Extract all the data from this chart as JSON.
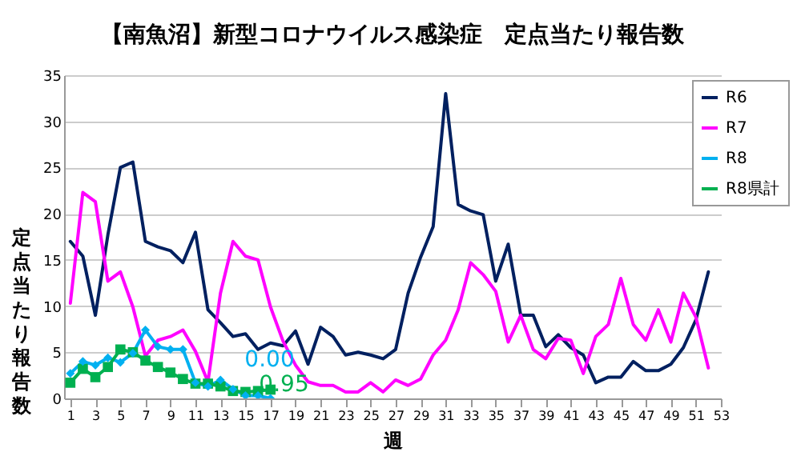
{
  "chart_data": {
    "type": "line",
    "title": "【南魚沼】新型コロナウイルス感染症　定点当たり報告数",
    "xlabel": "週",
    "ylabel": "定点当たり報告数",
    "x": [
      1,
      2,
      3,
      4,
      5,
      6,
      7,
      8,
      9,
      10,
      11,
      12,
      13,
      14,
      15,
      16,
      17,
      18,
      19,
      20,
      21,
      22,
      23,
      24,
      25,
      26,
      27,
      28,
      29,
      30,
      31,
      32,
      33,
      34,
      35,
      36,
      37,
      38,
      39,
      40,
      41,
      42,
      43,
      44,
      45,
      46,
      47,
      48,
      49,
      50,
      51,
      52
    ],
    "series": [
      {
        "name": "R6",
        "color": "#002060",
        "marker": "none",
        "values": [
          17.0,
          15.4,
          9.0,
          17.7,
          25.0,
          25.6,
          17.0,
          16.4,
          16.0,
          14.7,
          18.0,
          9.6,
          8.2,
          6.7,
          7.0,
          5.3,
          6.0,
          5.7,
          7.3,
          3.7,
          7.7,
          6.7,
          4.7,
          5.0,
          4.7,
          4.3,
          5.3,
          11.4,
          15.3,
          18.6,
          33.0,
          21.0,
          20.3,
          19.9,
          12.7,
          16.7,
          9.0,
          9.0,
          5.6,
          6.9,
          5.5,
          4.7,
          1.7,
          2.3,
          2.3,
          4.0,
          3.0,
          3.0,
          3.7,
          5.5,
          8.5,
          13.7
        ]
      },
      {
        "name": "R7",
        "color": "#ff00ff",
        "marker": "none",
        "values": [
          10.3,
          22.3,
          21.3,
          12.7,
          13.7,
          9.9,
          4.6,
          6.3,
          6.7,
          7.4,
          5.1,
          1.8,
          11.4,
          17.0,
          15.4,
          15.0,
          9.9,
          6.2,
          3.6,
          1.8,
          1.4,
          1.4,
          0.7,
          0.7,
          1.7,
          0.7,
          2.0,
          1.4,
          2.1,
          4.7,
          6.3,
          9.6,
          14.7,
          13.4,
          11.6,
          6.1,
          9.0,
          5.3,
          4.3,
          6.5,
          6.3,
          2.7,
          6.7,
          8.0,
          13.0,
          8.0,
          6.3,
          9.6,
          6.1,
          11.4,
          8.8,
          3.3
        ]
      },
      {
        "name": "R8",
        "color": "#00b0f0",
        "marker": "diamond",
        "x": [
          1,
          2,
          3,
          4,
          5,
          6,
          7,
          8,
          9,
          10,
          11,
          12,
          13,
          14,
          15,
          16,
          17
        ],
        "values": [
          2.7,
          4.0,
          3.6,
          4.4,
          3.9,
          4.9,
          7.4,
          5.6,
          5.3,
          5.3,
          1.7,
          1.3,
          2.0,
          1.0,
          0.3,
          0.3,
          0.0
        ],
        "value_labels": [
          null,
          null,
          null,
          null,
          null,
          null,
          null,
          null,
          null,
          null,
          null,
          null,
          null,
          null,
          null,
          null,
          "0.00"
        ]
      },
      {
        "name": "R8県計",
        "color": "#00b050",
        "marker": "square",
        "x": [
          1,
          2,
          3,
          4,
          5,
          6,
          7,
          8,
          9,
          10,
          11,
          12,
          13,
          14,
          15,
          16,
          17
        ],
        "values": [
          1.7,
          3.2,
          2.3,
          3.4,
          5.3,
          5.0,
          4.1,
          3.4,
          2.8,
          2.1,
          1.6,
          1.6,
          1.3,
          0.8,
          0.7,
          0.8,
          0.95
        ],
        "value_labels": [
          null,
          null,
          null,
          null,
          null,
          null,
          null,
          null,
          null,
          null,
          null,
          null,
          null,
          null,
          null,
          null,
          "0.95"
        ]
      }
    ],
    "xlim": [
      0.5,
      53
    ],
    "xticks": [
      1,
      3,
      5,
      7,
      9,
      11,
      13,
      15,
      17,
      19,
      21,
      23,
      25,
      27,
      29,
      31,
      33,
      35,
      37,
      39,
      41,
      43,
      45,
      47,
      49,
      51,
      53
    ],
    "ylim": [
      0,
      35
    ],
    "yticks": [
      0,
      5,
      10,
      15,
      20,
      25,
      30,
      35
    ],
    "grid": "y",
    "legend": "top right",
    "line_style": "solid"
  }
}
